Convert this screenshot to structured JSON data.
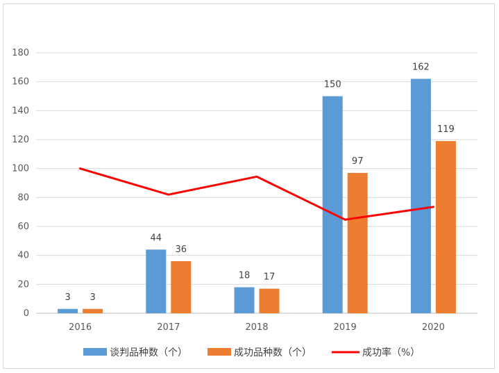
{
  "chart_data": {
    "type": "bar",
    "categories": [
      "2016",
      "2017",
      "2018",
      "2019",
      "2020"
    ],
    "series": [
      {
        "name": "谈判品种数（个）",
        "kind": "bar",
        "color": "#5b9bd5",
        "values": [
          3,
          44,
          18,
          150,
          162
        ]
      },
      {
        "name": "成功品种数（个）",
        "kind": "bar",
        "color": "#ed7d31",
        "values": [
          3,
          36,
          17,
          97,
          119
        ]
      },
      {
        "name": "成功率（%）",
        "kind": "line",
        "color": "#ff0000",
        "values": [
          100,
          82,
          94.4,
          64.7,
          73.5
        ]
      }
    ],
    "ylim": [
      0,
      180
    ],
    "yticks": [
      "0",
      "20",
      "40",
      "60",
      "80",
      "100",
      "120",
      "140",
      "160",
      "180"
    ],
    "grid": true,
    "legend_position": "bottom"
  }
}
